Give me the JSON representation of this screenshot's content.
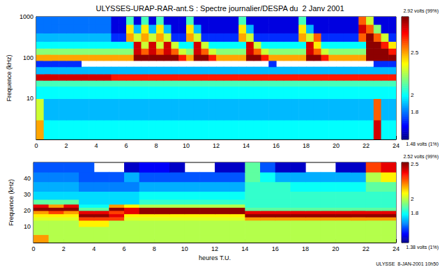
{
  "chart_data": [
    {
      "type": "heatmap",
      "title": "ULYSSES-URAP-RAR-ant.S : Spectre journalier/DESPA du  2 Janv 2001",
      "ylabel": "Frequence (kHz)",
      "log": "y",
      "grid": false,
      "xlim": [
        0,
        24
      ],
      "xticks": [
        0,
        2,
        4,
        6,
        8,
        10,
        12,
        14,
        16,
        18,
        20,
        22,
        24
      ],
      "ylim": [
        1,
        1000
      ],
      "yticks": [
        10,
        100,
        1000
      ],
      "x_edges": [
        0,
        0.5,
        1,
        1.5,
        2,
        2.5,
        3,
        3.5,
        4,
        4.5,
        5,
        5.5,
        6,
        6.5,
        7,
        7.5,
        8,
        8.5,
        9,
        9.5,
        10,
        10.5,
        11,
        11.5,
        12,
        12.5,
        13,
        13.5,
        14,
        14.5,
        15,
        15.5,
        16,
        16.5,
        17,
        17.5,
        18,
        18.5,
        19,
        19.5,
        20,
        20.5,
        21,
        21.5,
        22,
        22.5,
        23,
        23.5,
        24
      ],
      "y_edges": [
        1,
        3,
        10,
        20,
        28,
        40,
        60,
        85,
        120,
        170,
        250,
        400,
        650,
        1000
      ],
      "cells": [
        [
          2.5,
          2,
          2,
          2,
          2,
          2,
          2,
          2,
          2,
          2,
          2,
          2,
          2,
          2,
          2,
          2,
          2,
          2,
          2,
          2,
          2,
          2,
          2,
          2,
          2,
          2,
          2,
          2,
          2,
          2,
          2,
          2,
          2,
          2,
          2,
          2,
          2,
          2,
          2,
          2,
          2,
          2,
          2,
          2,
          2,
          2.8,
          2,
          2
        ],
        [
          2.3,
          1.9,
          1.9,
          1.9,
          1.9,
          1.9,
          1.9,
          1.9,
          1.9,
          1.9,
          1.9,
          1.9,
          1.9,
          1.9,
          1.9,
          1.9,
          1.9,
          1.9,
          1.9,
          1.9,
          1.9,
          1.9,
          1.9,
          1.9,
          1.9,
          1.9,
          1.9,
          1.9,
          1.9,
          1.9,
          1.9,
          1.9,
          1.9,
          1.9,
          1.9,
          1.9,
          1.9,
          1.9,
          1.9,
          1.9,
          1.9,
          1.9,
          1.9,
          1.9,
          1.9,
          2.6,
          1.9,
          1.9
        ],
        [
          2,
          2,
          2,
          2,
          2,
          2,
          2,
          2,
          2,
          2,
          2,
          2,
          2,
          2,
          2,
          2,
          2,
          2,
          2,
          2,
          2,
          2,
          2,
          2,
          2,
          2,
          2,
          2,
          2,
          2,
          2,
          2,
          2,
          2,
          2,
          2,
          2,
          2,
          2,
          2,
          2,
          2,
          2,
          2,
          2,
          2,
          2,
          2
        ],
        [
          2.1,
          2.1,
          2.1,
          2.1,
          2.1,
          2.1,
          2.1,
          2.1,
          2.1,
          2.1,
          2.1,
          2.1,
          2.1,
          2.1,
          2.1,
          2.1,
          2.1,
          2.1,
          2.1,
          2.1,
          2.1,
          2.1,
          2.1,
          2.1,
          2.1,
          2.1,
          2.1,
          2.1,
          2.1,
          2.1,
          2.1,
          2.1,
          2.1,
          2.1,
          2.1,
          2.1,
          2.1,
          2.1,
          2.1,
          2.1,
          2.1,
          2.1,
          2.1,
          2.1,
          2.1,
          2.1,
          2.1,
          2.1
        ],
        [
          2.8,
          2.8,
          2.8,
          2.8,
          2.8,
          2.8,
          2.8,
          2.8,
          2.8,
          2.8,
          2.7,
          2.7,
          2.7,
          2.7,
          2.7,
          2.7,
          2.7,
          2.7,
          2.7,
          2.7,
          2.7,
          2.7,
          2.7,
          2.7,
          2.7,
          2.7,
          2.7,
          2.7,
          2.7,
          2.7,
          2.7,
          2.7,
          2.7,
          2.7,
          2.7,
          2.7,
          2.7,
          2.7,
          2.7,
          2.7,
          2.7,
          2.7,
          2.7,
          2.7,
          2.7,
          2.7,
          2.7,
          2.7
        ],
        [
          1.9,
          1.9,
          1.9,
          1.9,
          1.9,
          1.9,
          1.9,
          1.9,
          1.9,
          1.9,
          1.9,
          1.9,
          1.9,
          1.9,
          1.9,
          1.9,
          1.9,
          1.9,
          1.9,
          1.9,
          1.9,
          1.9,
          1.9,
          1.9,
          1.9,
          1.9,
          1.9,
          1.9,
          1.9,
          1.9,
          1.9,
          1.9,
          1.9,
          1.9,
          1.9,
          1.9,
          1.9,
          1.9,
          1.9,
          1.9,
          1.9,
          1.9,
          1.9,
          1.9,
          1.9,
          1.9,
          1.9,
          1.9
        ],
        [
          1.7,
          1.7,
          1.7,
          1.7,
          1.7,
          1.7,
          null,
          null,
          null,
          null,
          null,
          null,
          null,
          null,
          null,
          null,
          null,
          null,
          null,
          null,
          null,
          null,
          null,
          null,
          null,
          null,
          null,
          null,
          null,
          null,
          null,
          1.7,
          null,
          null,
          null,
          null,
          null,
          null,
          null,
          null,
          null,
          null,
          null,
          null,
          null,
          1.7,
          1.7,
          1.7
        ],
        [
          2.5,
          2.5,
          2.5,
          2.5,
          2.5,
          2.5,
          2.5,
          2.5,
          2.5,
          2.5,
          2.5,
          2.5,
          2.5,
          2.9,
          2.9,
          2.9,
          2.9,
          2.9,
          2.9,
          2.7,
          2.5,
          2.9,
          2.9,
          2.7,
          2.5,
          2.5,
          2.5,
          2.5,
          2.9,
          2.9,
          2.7,
          2.5,
          2.5,
          2.5,
          2.5,
          2.5,
          2.9,
          2.9,
          2.7,
          2.5,
          2.5,
          2.5,
          2.5,
          2.5,
          2.9,
          2.9,
          2.9,
          2.9
        ],
        [
          2.2,
          2.2,
          2.2,
          2.2,
          2.2,
          2.2,
          2.2,
          2.2,
          2.2,
          2.2,
          2.2,
          2.2,
          2.2,
          2.8,
          2.6,
          2.8,
          2.6,
          2.8,
          2.6,
          2.3,
          2.2,
          2.8,
          2.6,
          2.3,
          2.2,
          2.2,
          2.2,
          2.2,
          2.8,
          2.6,
          2.3,
          2.2,
          2.2,
          2.2,
          2.2,
          2.2,
          2.8,
          2.6,
          2.3,
          2.2,
          2.2,
          2.2,
          2.2,
          2.2,
          2.9,
          2.9,
          2.9,
          2.7
        ],
        [
          2,
          2,
          2,
          2,
          2,
          2,
          2,
          2,
          2,
          2,
          2,
          2,
          2,
          2.8,
          2.3,
          2.8,
          2.3,
          2.8,
          2.3,
          2,
          2,
          2.8,
          2.3,
          2,
          2,
          2,
          2,
          2,
          2.8,
          2.3,
          2,
          2,
          2,
          2,
          2,
          2,
          2.8,
          2.4,
          2,
          2,
          2,
          2,
          2,
          2,
          2.9,
          2.9,
          2.7,
          2.4
        ],
        [
          1.9,
          1.9,
          1.9,
          1.9,
          1.9,
          1.9,
          1.9,
          1.9,
          1.9,
          1.9,
          1.7,
          1.7,
          2.5,
          2.3,
          2.5,
          2.3,
          2.5,
          2.3,
          1.7,
          1.7,
          2.5,
          2.3,
          1.7,
          1.7,
          1.7,
          1.7,
          1.7,
          2.5,
          2.3,
          1.7,
          1.7,
          1.7,
          1.7,
          1.7,
          1.7,
          2.5,
          2.3,
          2.6,
          1.7,
          1.7,
          1.7,
          1.7,
          1.7,
          2.6,
          2.9,
          2.6,
          2.3,
          1.7
        ],
        [
          1.8,
          1.8,
          1.8,
          1.8,
          1.8,
          1.8,
          1.8,
          1.8,
          1.8,
          1.8,
          1.6,
          1.6,
          2.4,
          1.9,
          2.4,
          1.9,
          2.4,
          1.9,
          1.6,
          1.6,
          2.4,
          1.9,
          1.6,
          1.6,
          1.6,
          1.6,
          1.6,
          2.4,
          1.9,
          1.6,
          1.6,
          1.6,
          1.6,
          1.6,
          1.6,
          2.4,
          1.9,
          1.6,
          1.6,
          1.6,
          1.6,
          1.6,
          1.6,
          2.8,
          2.6,
          2.2,
          1.6,
          1.6
        ],
        [
          1.8,
          1.8,
          1.8,
          1.8,
          1.8,
          1.8,
          1.8,
          1.8,
          1.8,
          1.8,
          1.6,
          1.6,
          2.1,
          1.6,
          2.1,
          1.6,
          2.1,
          1.6,
          1.6,
          1.6,
          2.1,
          1.6,
          1.6,
          1.6,
          1.6,
          1.6,
          1.6,
          2.1,
          1.6,
          1.6,
          1.6,
          1.6,
          1.6,
          1.6,
          1.6,
          2.1,
          1.6,
          1.6,
          1.6,
          1.6,
          1.6,
          1.6,
          1.6,
          2.6,
          2.3,
          1.6,
          1.6,
          1.6
        ]
      ],
      "color_range": [
        1.48,
        2.92
      ],
      "color_ticks": [
        {
          "value": 2.92,
          "label": "2.92 volts (99%)"
        },
        2.5,
        2,
        1.8,
        {
          "value": 1.48,
          "label": "1.48 volts (1%)"
        }
      ]
    },
    {
      "type": "heatmap",
      "xlabel": "heures T.U.",
      "ylabel": "Frequence (kHz)",
      "grid": false,
      "xlim": [
        0,
        24
      ],
      "xticks": [
        0,
        2,
        4,
        6,
        8,
        10,
        12,
        14,
        16,
        18,
        20,
        22,
        24
      ],
      "ylim": [
        0,
        50
      ],
      "yticks": [
        10,
        20,
        30,
        40
      ],
      "x_edges": [
        0,
        1,
        2,
        3,
        4,
        5,
        6,
        7,
        8,
        9,
        10,
        11,
        12,
        13,
        14,
        15,
        16,
        17,
        18,
        19,
        20,
        21,
        22,
        23,
        24
      ],
      "y_edges": [
        0,
        5,
        10,
        14,
        16,
        18,
        20,
        22,
        24,
        27,
        32,
        38,
        44,
        50
      ],
      "cells": [
        [
          2.2,
          2,
          2,
          2,
          2,
          2,
          2,
          2,
          2,
          2,
          2,
          2,
          2,
          2,
          2,
          2,
          2,
          2,
          2,
          2,
          2,
          2,
          2,
          2
        ],
        [
          2,
          2,
          2,
          2,
          2,
          2,
          2,
          2,
          2,
          2,
          2,
          2,
          2,
          2,
          2,
          2,
          2,
          2,
          2,
          2,
          2,
          2,
          2,
          2
        ],
        [
          2,
          2,
          2,
          2.1,
          2.1,
          2,
          2,
          2,
          2,
          2,
          2,
          2,
          2,
          2,
          2,
          2,
          2,
          2,
          2,
          2,
          2,
          2,
          2,
          2
        ],
        [
          2.05,
          2.05,
          2.05,
          2.3,
          2.3,
          2.3,
          2.05,
          2.05,
          2.05,
          2.05,
          2.05,
          2.05,
          2.05,
          2.05,
          2.2,
          2.2,
          2.2,
          2.2,
          2.2,
          2.2,
          2.2,
          2.2,
          2.2,
          2.2
        ],
        [
          2.1,
          2.1,
          2.1,
          2.5,
          2.5,
          2.4,
          2.1,
          2.1,
          2.1,
          2.1,
          2.1,
          2.1,
          2.1,
          2.1,
          2.5,
          2.5,
          2.5,
          2.5,
          2.5,
          2.5,
          2.5,
          2.5,
          2.5,
          2.5
        ],
        [
          2.2,
          2.3,
          2.2,
          2.4,
          2.4,
          2.3,
          2.4,
          2.5,
          2.5,
          2.5,
          2.5,
          2.5,
          2.5,
          2.5,
          2.4,
          2.4,
          2.4,
          2.4,
          2.4,
          2.4,
          2.4,
          2.4,
          2.4,
          2.4
        ],
        [
          2.5,
          2.5,
          2.5,
          1.9,
          1.9,
          2.5,
          2.4,
          2.5,
          2.5,
          2.5,
          2.5,
          2.5,
          2.5,
          2.5,
          1.9,
          1.9,
          1.9,
          1.9,
          1.9,
          1.9,
          1.9,
          1.9,
          1.9,
          1.9
        ],
        [
          2.4,
          2.2,
          2.4,
          1.8,
          1.8,
          2.2,
          2.1,
          2,
          2,
          2,
          2,
          2,
          2,
          2,
          1.85,
          1.85,
          1.85,
          1.85,
          1.85,
          1.85,
          1.85,
          1.85,
          1.85,
          1.85
        ],
        [
          1.9,
          1.9,
          1.9,
          1.75,
          1.75,
          1.75,
          1.75,
          1.85,
          1.85,
          1.85,
          1.85,
          1.85,
          1.85,
          1.85,
          1.85,
          1.85,
          1.85,
          1.85,
          1.85,
          1.85,
          1.85,
          1.85,
          1.85,
          1.85
        ],
        [
          1.75,
          1.75,
          1.75,
          1.75,
          1.75,
          1.75,
          1.75,
          1.8,
          1.8,
          1.8,
          1.8,
          1.8,
          1.8,
          1.8,
          1.85,
          1.85,
          1.85,
          1.85,
          1.85,
          1.85,
          1.85,
          1.85,
          1.85,
          1.85
        ],
        [
          1.7,
          1.7,
          1.7,
          1.65,
          1.65,
          1.65,
          1.65,
          1.7,
          1.7,
          1.7,
          1.7,
          1.7,
          1.7,
          1.7,
          1.85,
          1.85,
          1.85,
          1.8,
          1.8,
          1.8,
          1.8,
          1.8,
          1.9,
          1.9
        ],
        [
          1.65,
          1.65,
          1.65,
          1.6,
          1.6,
          1.6,
          1.7,
          1.6,
          1.6,
          1.6,
          1.6,
          1.6,
          1.6,
          1.6,
          1.9,
          1.8,
          1.7,
          1.7,
          1.7,
          1.7,
          1.7,
          1.7,
          2,
          2.1
        ],
        [
          1.6,
          1.6,
          1.6,
          1.6,
          null,
          null,
          1.45,
          1.5,
          1.5,
          1.45,
          null,
          null,
          1.45,
          1.45,
          1.9,
          1.6,
          1.45,
          1.45,
          null,
          null,
          1.45,
          1.45,
          2.3,
          2.4
        ]
      ],
      "color_range": [
        1.38,
        2.52
      ],
      "color_ticks": [
        {
          "value": 2.52,
          "label": "2.52 volts (99%)"
        },
        2.5,
        2,
        1.8,
        {
          "value": 1.38,
          "label": "1.38 volts (1%)"
        }
      ],
      "annotation": "ULYSSE  8-JAN-2001 10h50"
    }
  ]
}
